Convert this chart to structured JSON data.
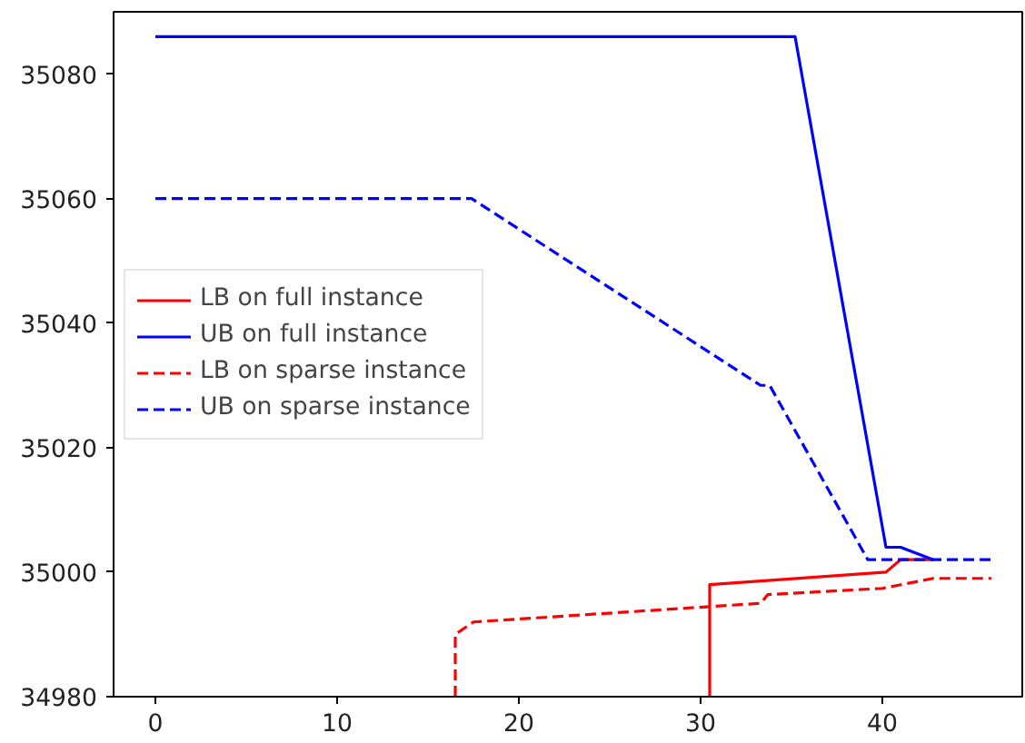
{
  "chart_data": {
    "type": "line",
    "xlim": [
      -2.3,
      47.7
    ],
    "ylim": [
      34980,
      35090
    ],
    "xticks": [
      0,
      10,
      20,
      30,
      40
    ],
    "yticks": [
      34980,
      35000,
      35020,
      35040,
      35060,
      35080
    ],
    "grid": false,
    "legend": "left",
    "series": [
      {
        "name": "LB on full instance",
        "color": "#ff0000",
        "line_style": "solid",
        "x": [
          30.5,
          30.5,
          40.2,
          41.0,
          42.8
        ],
        "values": [
          34980,
          34998,
          35000,
          35002,
          35002
        ]
      },
      {
        "name": "UB on full instance",
        "color": "#0000ff",
        "line_style": "solid",
        "x": [
          0,
          35.2,
          40.2,
          41.0,
          42.8
        ],
        "values": [
          35086,
          35086,
          35004,
          35004,
          35002
        ]
      },
      {
        "name": "LB on sparse instance",
        "color": "#ff0000",
        "line_style": "dashed",
        "x": [
          16.5,
          16.5,
          17.5,
          33.3,
          33.7,
          40.0,
          42.8,
          46.0
        ],
        "values": [
          34980,
          34990,
          34992,
          34995,
          34996.4,
          34997.4,
          34999,
          34999
        ]
      },
      {
        "name": "UB on sparse instance",
        "color": "#0000ff",
        "line_style": "dashed",
        "x": [
          0,
          17.4,
          33.3,
          33.8,
          39.2,
          46.0
        ],
        "values": [
          35060,
          35060,
          35030,
          35030,
          35002,
          35002
        ]
      }
    ]
  }
}
